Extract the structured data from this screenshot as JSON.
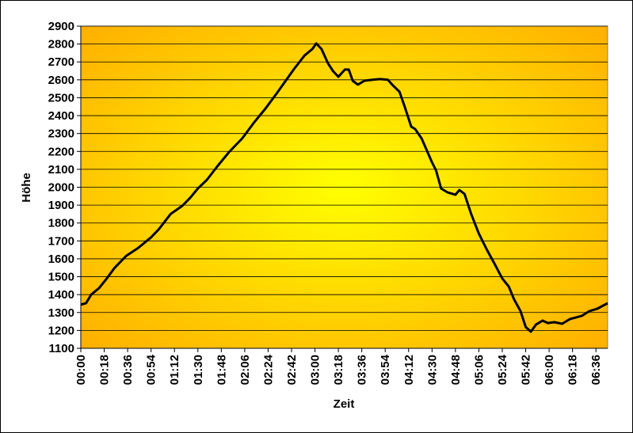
{
  "chart_data": {
    "type": "line",
    "x_label": "Zeit",
    "y_label": "Höhe",
    "x": [
      0,
      4,
      8,
      14,
      20,
      26,
      35,
      44,
      54,
      60,
      69,
      78,
      84,
      90,
      97,
      105,
      114,
      124,
      133,
      142,
      151,
      157,
      164,
      172,
      178,
      181,
      185,
      190,
      194,
      198,
      203,
      206,
      209,
      213,
      218,
      224,
      230,
      236,
      240,
      245,
      249,
      254,
      257,
      262,
      266,
      270,
      273,
      277,
      282,
      288,
      291,
      295,
      300,
      306,
      312,
      318,
      324,
      329,
      333,
      338,
      342,
      346,
      350,
      355,
      359,
      364,
      370,
      376,
      385,
      391,
      397,
      405
    ],
    "values": [
      1344,
      1352,
      1400,
      1436,
      1490,
      1550,
      1617,
      1660,
      1720,
      1765,
      1850,
      1896,
      1940,
      1993,
      2042,
      2117,
      2197,
      2272,
      2360,
      2440,
      2528,
      2590,
      2661,
      2736,
      2772,
      2803,
      2772,
      2692,
      2648,
      2617,
      2657,
      2657,
      2595,
      2573,
      2595,
      2600,
      2604,
      2600,
      2568,
      2533,
      2449,
      2338,
      2325,
      2272,
      2205,
      2139,
      2095,
      1993,
      1971,
      1958,
      1984,
      1962,
      1852,
      1741,
      1653,
      1573,
      1490,
      1445,
      1374,
      1308,
      1219,
      1193,
      1233,
      1255,
      1241,
      1246,
      1237,
      1263,
      1281,
      1308,
      1321,
      1352
    ],
    "color": "#000000",
    "xlim": [
      0,
      405
    ],
    "xticks": [
      {
        "value": 0,
        "label": "00:00"
      },
      {
        "value": 18,
        "label": "00:18"
      },
      {
        "value": 36,
        "label": "00:36"
      },
      {
        "value": 54,
        "label": "00:54"
      },
      {
        "value": 72,
        "label": "01:12"
      },
      {
        "value": 90,
        "label": "01:30"
      },
      {
        "value": 108,
        "label": "01:48"
      },
      {
        "value": 126,
        "label": "02:06"
      },
      {
        "value": 144,
        "label": "02:24"
      },
      {
        "value": 162,
        "label": "02:42"
      },
      {
        "value": 180,
        "label": "03:00"
      },
      {
        "value": 198,
        "label": "03:18"
      },
      {
        "value": 216,
        "label": "03:36"
      },
      {
        "value": 234,
        "label": "03:54"
      },
      {
        "value": 252,
        "label": "04:12"
      },
      {
        "value": 270,
        "label": "04:30"
      },
      {
        "value": 288,
        "label": "04:48"
      },
      {
        "value": 306,
        "label": "05:06"
      },
      {
        "value": 324,
        "label": "05:24"
      },
      {
        "value": 342,
        "label": "05:42"
      },
      {
        "value": 360,
        "label": "06:00"
      },
      {
        "value": 378,
        "label": "06:18"
      },
      {
        "value": 396,
        "label": "06:36"
      }
    ],
    "ylim": [
      1100,
      2900
    ],
    "yticks": [
      1100,
      1200,
      1300,
      1400,
      1500,
      1600,
      1700,
      1800,
      1900,
      2000,
      2100,
      2200,
      2300,
      2400,
      2500,
      2600,
      2700,
      2800,
      2900
    ],
    "grid": true
  }
}
